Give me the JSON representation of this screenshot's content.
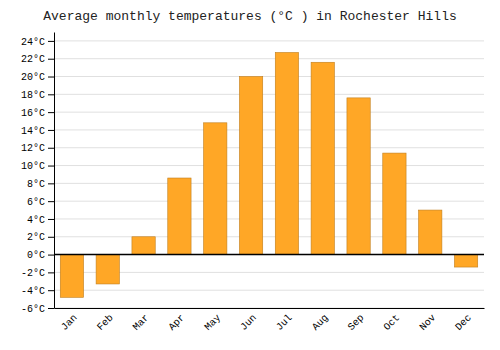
{
  "chart_data": {
    "type": "bar",
    "title": "Average monthly temperatures (°C ) in Rochester Hills",
    "categories": [
      "Jan",
      "Feb",
      "Mar",
      "Apr",
      "May",
      "Jun",
      "Jul",
      "Aug",
      "Sep",
      "Oct",
      "Nov",
      "Dec"
    ],
    "values": [
      -4.8,
      -3.3,
      2.0,
      8.6,
      14.8,
      20.0,
      22.7,
      21.6,
      17.6,
      11.4,
      5.0,
      -1.4
    ],
    "color": "#FFA726",
    "ylim": [
      -6,
      25
    ],
    "yticks": [
      {
        "value": -6,
        "label": "-6°C"
      },
      {
        "value": -4,
        "label": "-4°C"
      },
      {
        "value": -2,
        "label": "-2°C"
      },
      {
        "value": 0,
        "label": "0°C"
      },
      {
        "value": 2,
        "label": "2°C"
      },
      {
        "value": 4,
        "label": "4°C"
      },
      {
        "value": 6,
        "label": "6°C"
      },
      {
        "value": 8,
        "label": "8°C"
      },
      {
        "value": 10,
        "label": "10°C"
      },
      {
        "value": 12,
        "label": "12°C"
      },
      {
        "value": 14,
        "label": "14°C"
      },
      {
        "value": 16,
        "label": "16°C"
      },
      {
        "value": 18,
        "label": "18°C"
      },
      {
        "value": 20,
        "label": "20°C"
      },
      {
        "value": 22,
        "label": "22°C"
      },
      {
        "value": 24,
        "label": "24°C"
      }
    ],
    "grid": true
  }
}
